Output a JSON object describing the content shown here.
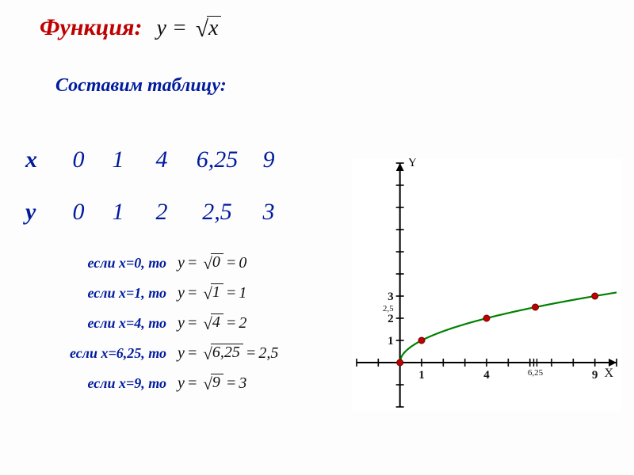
{
  "title": "Функция:",
  "formula": {
    "lhs": "y",
    "rhs_radicand": "x"
  },
  "subtitle": "Составим таблицу:",
  "table": {
    "x_label": "x",
    "y_label": "y",
    "x": [
      "0",
      "1",
      "4",
      "6,25",
      "9"
    ],
    "y": [
      "0",
      "1",
      "2",
      "2,5",
      "3"
    ],
    "font_size": 30,
    "color": "#001b9e"
  },
  "derivations": {
    "color": "#001b9e",
    "rows": [
      {
        "cond": "если x=0, то",
        "radicand": "0",
        "result": "0"
      },
      {
        "cond": "если x=1, то",
        "radicand": "1",
        "result": "1"
      },
      {
        "cond": "если x=4, то",
        "radicand": "4",
        "result": "2"
      },
      {
        "cond": "если x=6,25, то",
        "radicand": "6,25",
        "result": "2,5"
      },
      {
        "cond": "если x=9, то",
        "radicand": "9",
        "result": "3"
      }
    ]
  },
  "graph": {
    "type": "line+scatter",
    "background_color": "#ffffff",
    "axis_color": "#000000",
    "grid_color": "#000000",
    "curve_color": "#008000",
    "curve_width": 2.2,
    "marker_color": "#c00000",
    "marker_border": "#700000",
    "marker_radius": 4,
    "x_axis_label": "X",
    "y_axis_label": "Y",
    "xlim": [
      -2,
      10
    ],
    "ylim": [
      -2,
      9
    ],
    "x_ticks": [
      -2,
      -1,
      0,
      1,
      2,
      3,
      4,
      5,
      6,
      7,
      8,
      9,
      10
    ],
    "y_ticks": [
      -2,
      -1,
      0,
      1,
      2,
      3,
      4,
      5,
      6,
      7,
      8,
      9
    ],
    "x_tick_labels": [
      {
        "v": 1,
        "t": "1"
      },
      {
        "v": 4,
        "t": "4"
      },
      {
        "v": 6.25,
        "t": "6,25",
        "small": true
      },
      {
        "v": 9,
        "t": "9"
      }
    ],
    "y_tick_labels": [
      {
        "v": 1,
        "t": "1"
      },
      {
        "v": 2,
        "t": "2"
      },
      {
        "v": 2.5,
        "t": "2,5",
        "small": true
      },
      {
        "v": 3,
        "t": "3"
      }
    ],
    "points": [
      {
        "x": 0,
        "y": 0
      },
      {
        "x": 1,
        "y": 1
      },
      {
        "x": 4,
        "y": 2
      },
      {
        "x": 6.25,
        "y": 2.5
      },
      {
        "x": 9,
        "y": 3
      }
    ],
    "double_tick_x": 6.25
  },
  "colors": {
    "title": "#c00000",
    "subtitle": "#001b9e",
    "formula": "#111111"
  }
}
